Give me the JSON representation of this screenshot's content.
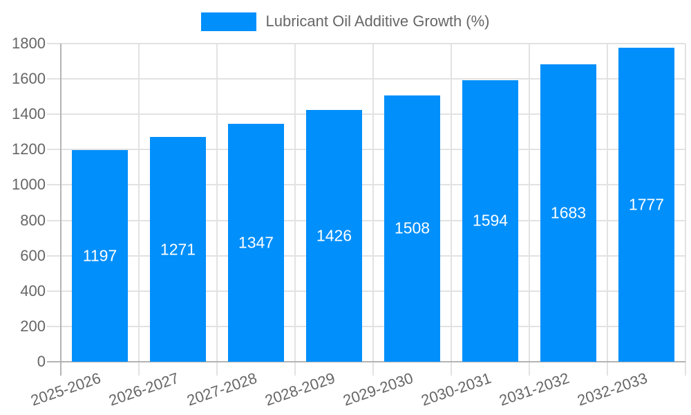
{
  "legend": {
    "series_label": "Lubricant Oil Additive Growth (%)"
  },
  "chart_data": {
    "type": "bar",
    "title": "Lubricant Oil Additive Growth (%)",
    "categories": [
      "2025-2026",
      "2026-2027",
      "2027-2028",
      "2028-2029",
      "2029-2030",
      "2030-2031",
      "2031-2032",
      "2032-2033"
    ],
    "series": [
      {
        "name": "Lubricant Oil Additive Growth (%)",
        "values": [
          1197,
          1271,
          1347,
          1426,
          1508,
          1594,
          1683,
          1777
        ]
      }
    ],
    "data_labels_shown": true,
    "xlabel": "",
    "ylabel": "",
    "ylim": [
      0,
      1800
    ],
    "ytick_step": 200,
    "grid": true,
    "legend_position": "top",
    "colors": {
      "bar": "#008FFB",
      "axis_text": "#666666",
      "gridline": "#e2e2e2",
      "axis_line": "#b3b3b3",
      "data_label": "#ffffff",
      "background": "#ffffff"
    }
  }
}
